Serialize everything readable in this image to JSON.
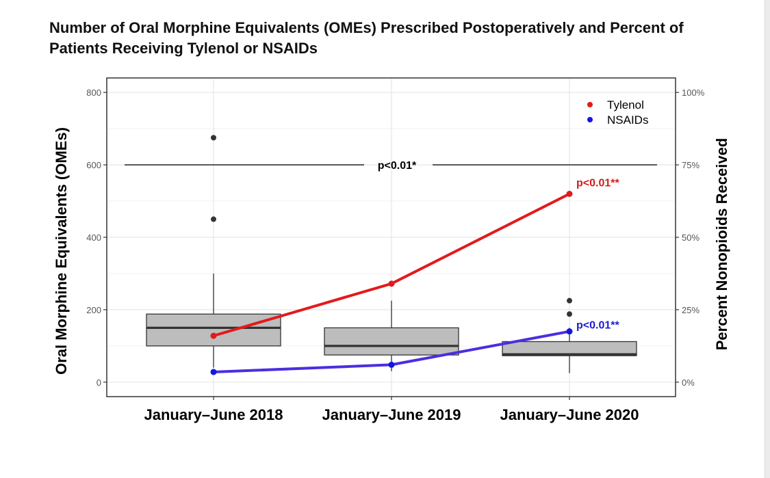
{
  "chart_data": {
    "type": "box+line",
    "title_lines": [
      "Number of Oral Morphine Equivalents (OMEs) Prescribed Postoperatively and Percent of",
      "Patients Receiving Tylenol or NSAIDs"
    ],
    "categories": [
      "January–June 2018",
      "January–June 2019",
      "January–June 2020"
    ],
    "y_left": {
      "label": "Oral Morphine Equivalents (OMEs)",
      "range": [
        -40,
        840
      ],
      "ticks": [
        0,
        200,
        400,
        600,
        800
      ],
      "tick_labels": [
        "0",
        "200",
        "400",
        "600",
        "800"
      ]
    },
    "y_right": {
      "label": "Percent Nonopioids Received",
      "range": [
        -5,
        105
      ],
      "ticks": [
        0,
        25,
        50,
        75,
        100
      ],
      "tick_labels": [
        "0%",
        "25%",
        "50%",
        "75%",
        "100%"
      ]
    },
    "boxplots": [
      {
        "category": "January–June 2018",
        "whisker_low": 40,
        "q1": 100,
        "median": 150,
        "q3": 188,
        "whisker_high": 300,
        "outliers": [
          675,
          450
        ]
      },
      {
        "category": "January–June 2019",
        "whisker_low": 30,
        "q1": 75,
        "median": 100,
        "q3": 150,
        "whisker_high": 225,
        "outliers": []
      },
      {
        "category": "January–June 2020",
        "whisker_low": 25,
        "q1": 73,
        "median": 77,
        "q3": 112,
        "whisker_high": 150,
        "outliers": [
          225,
          188
        ]
      }
    ],
    "series": [
      {
        "name": "Tylenol",
        "color": "#e31a1c",
        "values": [
          16,
          34,
          65
        ]
      },
      {
        "name": "NSAIDs",
        "color": "#1515e0",
        "line_color": "#4b2ee0",
        "values": [
          3.5,
          6,
          17.5
        ]
      }
    ],
    "significance_bar": {
      "label": "p<0.01*",
      "y": 600
    },
    "annotations": [
      {
        "text": "p<0.01**",
        "series": "Tylenol",
        "category": "January–June 2020",
        "color": "#d01c1c"
      },
      {
        "text": "p<0.01**",
        "series": "NSAIDs",
        "category": "January–June 2020",
        "color": "#1a1ad6"
      }
    ],
    "legend": {
      "position": "top-right",
      "entries": [
        "Tylenol",
        "NSAIDs"
      ]
    },
    "grid": true
  }
}
